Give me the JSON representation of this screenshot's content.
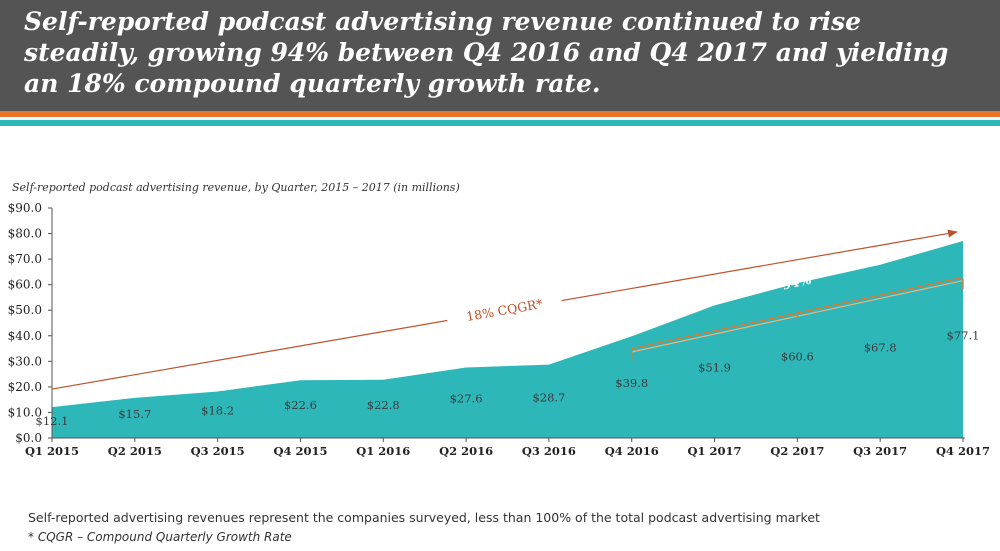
{
  "headline": "Self-reported podcast advertising revenue continued to rise steadily, growing 94% between Q4 2016 and Q4 2017 and yielding an 18% compound quarterly growth rate.",
  "colors": {
    "header_bg": "#545454",
    "stripe_orange": "#e8752a",
    "stripe_teal": "#2db7b9",
    "area_fill": "#2db7b9",
    "trend_arrow": "#c0502a",
    "bracket": "#e8752a"
  },
  "subtitle": "Self-reported podcast advertising revenue, by Quarter, 2015 – 2017 (in millions)",
  "note": "Self-reported advertising revenues represent the companies surveyed, less than 100% of the total podcast advertising market",
  "footnote": "* CQGR – Compound Quarterly Growth Rate",
  "chart_data": {
    "type": "area",
    "title": "",
    "categories": [
      "Q1 2015",
      "Q2 2015",
      "Q3 2015",
      "Q4 2015",
      "Q1 2016",
      "Q2 2016",
      "Q3 2016",
      "Q4 2016",
      "Q1 2017",
      "Q2 2017",
      "Q3 2017",
      "Q4 2017"
    ],
    "series": [
      {
        "values": [
          12.1,
          15.7,
          18.2,
          22.6,
          22.8,
          27.6,
          28.7,
          39.8,
          51.9,
          60.6,
          67.8,
          77.1
        ],
        "data_labels": [
          "$12.1",
          "$15.7",
          "$18.2",
          "$22.6",
          "$22.8",
          "$27.6",
          "$28.7",
          "$39.8",
          "$51.9",
          "$60.6",
          "$67.8",
          "$77.1"
        ]
      }
    ],
    "ylim": [
      0,
      90
    ],
    "yticks": [
      "$0.0",
      "$10.0",
      "$20.0",
      "$30.0",
      "$40.0",
      "$50.0",
      "$60.0",
      "$70.0",
      "$80.0",
      "$90.0"
    ],
    "grid": false,
    "legend": "none",
    "annotations": {
      "trend_label": "18% CQGR*",
      "growth_label": "94%",
      "growth_span": [
        "Q4 2016",
        "Q4 2017"
      ]
    }
  }
}
